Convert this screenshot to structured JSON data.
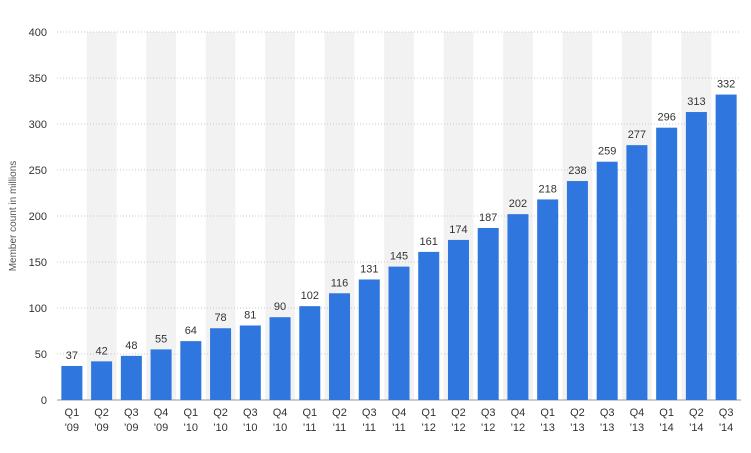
{
  "chart_data": {
    "type": "bar",
    "title": "",
    "xlabel": "",
    "ylabel": "Member count in millions",
    "ylim": [
      0,
      400
    ],
    "yticks": [
      0,
      50,
      100,
      150,
      200,
      250,
      300,
      350,
      400
    ],
    "grid": true,
    "legend": "none",
    "bar_color": "#2f76de",
    "stripe_color": "#f2f2f2",
    "categories": [
      {
        "q": "Q1",
        "y": "'09"
      },
      {
        "q": "Q2",
        "y": "'09"
      },
      {
        "q": "Q3",
        "y": "'09"
      },
      {
        "q": "Q4",
        "y": "'09"
      },
      {
        "q": "Q1",
        "y": "'10"
      },
      {
        "q": "Q2",
        "y": "'10"
      },
      {
        "q": "Q3",
        "y": "'10"
      },
      {
        "q": "Q4",
        "y": "'10"
      },
      {
        "q": "Q1",
        "y": "'11"
      },
      {
        "q": "Q2",
        "y": "'11"
      },
      {
        "q": "Q3",
        "y": "'11"
      },
      {
        "q": "Q4",
        "y": "'11"
      },
      {
        "q": "Q1",
        "y": "'12"
      },
      {
        "q": "Q2",
        "y": "'12"
      },
      {
        "q": "Q3",
        "y": "'12"
      },
      {
        "q": "Q4",
        "y": "'12"
      },
      {
        "q": "Q1",
        "y": "'13"
      },
      {
        "q": "Q2",
        "y": "'13"
      },
      {
        "q": "Q3",
        "y": "'13"
      },
      {
        "q": "Q4",
        "y": "'13"
      },
      {
        "q": "Q1",
        "y": "'14"
      },
      {
        "q": "Q2",
        "y": "'14"
      },
      {
        "q": "Q3",
        "y": "'14"
      }
    ],
    "values": [
      37,
      42,
      48,
      55,
      64,
      78,
      81,
      90,
      102,
      116,
      131,
      145,
      161,
      174,
      187,
      202,
      218,
      238,
      259,
      277,
      296,
      313,
      332
    ]
  }
}
